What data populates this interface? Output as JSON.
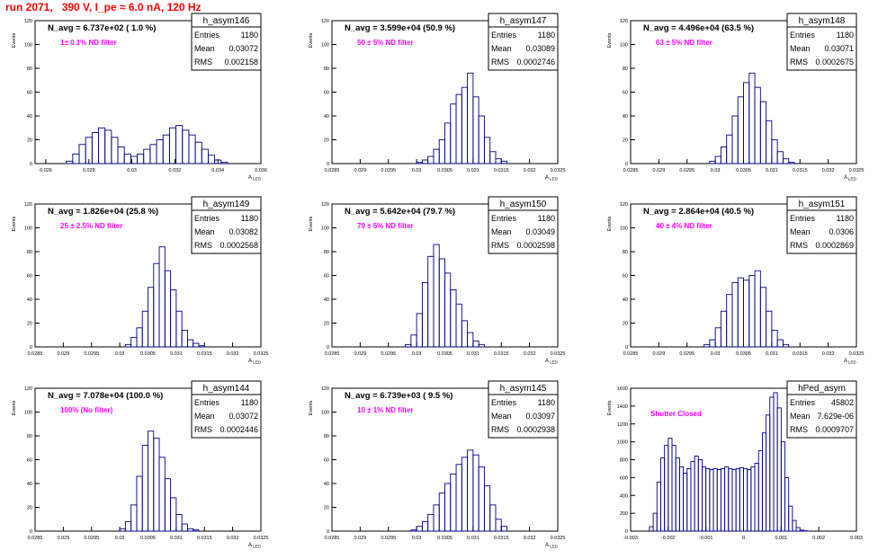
{
  "page_title": "run 2071,   390 V, I_pe ≈ 6.0 nA, 120 Hz",
  "colors": {
    "title": "#ff0000",
    "histogram": "#00008b",
    "filter_text": "#ff00ff",
    "frame": "#000000"
  },
  "chart_data": [
    {
      "type": "bar",
      "name": "h_asym146",
      "navg": "N_avg = 6.737e+02 ( 1.0 %)",
      "filter": "1± 0.1% ND filter",
      "stats": {
        "Entries": "1180",
        "Mean": "0.03072",
        "RMS": "0.002158"
      },
      "ylabel": "Events",
      "xlabel": "A_LED",
      "xlim": [
        0.0255,
        0.036
      ],
      "ylim": [
        0,
        120
      ],
      "xticks": [
        0.026,
        0.028,
        0.03,
        0.032,
        0.034,
        0.036
      ],
      "xticklabels": [
        "0.026",
        "0.028",
        "0.03",
        "0.032",
        "0.034",
        "0.036"
      ],
      "yticks": [
        0,
        20,
        40,
        60,
        80,
        100,
        120
      ],
      "yticklabels": [
        "0",
        "20",
        "40",
        "60",
        "80",
        "100",
        "120"
      ],
      "x": [
        0.0271,
        0.0274,
        0.0277,
        0.028,
        0.0283,
        0.0286,
        0.0289,
        0.0292,
        0.0295,
        0.0298,
        0.0301,
        0.0304,
        0.0307,
        0.031,
        0.0313,
        0.0316,
        0.0319,
        0.0322,
        0.0325,
        0.0328,
        0.0331,
        0.0334,
        0.0337,
        0.034,
        0.0343
      ],
      "values": [
        2,
        8,
        16,
        22,
        26,
        30,
        28,
        22,
        14,
        8,
        6,
        8,
        12,
        16,
        20,
        24,
        30,
        32,
        28,
        24,
        18,
        12,
        7,
        3,
        1
      ]
    },
    {
      "type": "bar",
      "name": "h_asym147",
      "navg": "N_avg = 3.599e+04 (50.9 %)",
      "filter": "50 ± 5% ND filter",
      "stats": {
        "Entries": "1180",
        "Mean": "0.03089",
        "RMS": "0.0002746"
      },
      "ylabel": "Events",
      "xlabel": "A_LED",
      "xlim": [
        0.0285,
        0.0325
      ],
      "ylim": [
        0,
        120
      ],
      "xticks": [
        0.0285,
        0.029,
        0.0295,
        0.03,
        0.0305,
        0.031,
        0.0315,
        0.032,
        0.0325
      ],
      "xticklabels": [
        "0.0285",
        "0.029",
        "0.0295",
        "0.03",
        "0.0305",
        "0.031",
        "0.0315",
        "0.032",
        "0.0325"
      ],
      "yticks": [
        0,
        20,
        40,
        60,
        80,
        100,
        120
      ],
      "yticklabels": [
        "0",
        "20",
        "40",
        "60",
        "80",
        "100",
        "120"
      ],
      "x": [
        0.03005,
        0.03015,
        0.03025,
        0.03035,
        0.03045,
        0.03055,
        0.03065,
        0.03075,
        0.03085,
        0.03095,
        0.03105,
        0.03115,
        0.03125,
        0.03135,
        0.03145,
        0.03155
      ],
      "values": [
        1,
        3,
        6,
        12,
        20,
        34,
        50,
        58,
        64,
        76,
        56,
        40,
        22,
        10,
        4,
        2
      ]
    },
    {
      "type": "bar",
      "name": "h_asym148",
      "navg": "N_avg = 4.496e+04 (63.5 %)",
      "filter": "63 ± 5% ND filter",
      "stats": {
        "Entries": "1180",
        "Mean": "0.03071",
        "RMS": "0.0002675"
      },
      "ylabel": "Events",
      "xlabel": "A_LED",
      "xlim": [
        0.0285,
        0.0325
      ],
      "ylim": [
        0,
        120
      ],
      "xticks": [
        0.0285,
        0.029,
        0.0295,
        0.03,
        0.0305,
        0.031,
        0.0315,
        0.032,
        0.0325
      ],
      "xticklabels": [
        "0.0285",
        "0.029",
        "0.0295",
        "0.03",
        "0.0305",
        "0.031",
        "0.0315",
        "0.032",
        "0.0325"
      ],
      "yticks": [
        0,
        20,
        40,
        60,
        80,
        100,
        120
      ],
      "yticklabels": [
        "0",
        "20",
        "40",
        "60",
        "80",
        "100",
        "120"
      ],
      "x": [
        0.02995,
        0.03005,
        0.03015,
        0.03025,
        0.03035,
        0.03045,
        0.03055,
        0.03065,
        0.03075,
        0.03085,
        0.03095,
        0.03105,
        0.03115,
        0.03125,
        0.03135
      ],
      "values": [
        2,
        6,
        14,
        24,
        40,
        56,
        68,
        76,
        64,
        52,
        36,
        20,
        10,
        4,
        1
      ]
    },
    {
      "type": "bar",
      "name": "h_asym149",
      "navg": "N_avg = 1.826e+04 (25.8 %)",
      "filter": "25 ± 2.5% ND filter",
      "stats": {
        "Entries": "1180",
        "Mean": "0.03082",
        "RMS": "0.0002568"
      },
      "ylabel": "Events",
      "xlabel": "A_LED",
      "xlim": [
        0.0285,
        0.0325
      ],
      "ylim": [
        0,
        120
      ],
      "xticks": [
        0.0285,
        0.029,
        0.0295,
        0.03,
        0.0305,
        0.031,
        0.0315,
        0.032,
        0.0325
      ],
      "xticklabels": [
        "0.0285",
        "0.029",
        "0.0295",
        "0.03",
        "0.0305",
        "0.031",
        "0.0315",
        "0.032",
        "0.0325"
      ],
      "yticks": [
        0,
        20,
        40,
        60,
        80,
        100,
        120
      ],
      "yticklabels": [
        "0",
        "20",
        "40",
        "60",
        "80",
        "100",
        "120"
      ],
      "x": [
        0.03015,
        0.03025,
        0.03035,
        0.03045,
        0.03055,
        0.03065,
        0.03075,
        0.03085,
        0.03095,
        0.03105,
        0.03115,
        0.03125,
        0.03135,
        0.03145
      ],
      "values": [
        2,
        8,
        16,
        30,
        50,
        70,
        84,
        64,
        48,
        30,
        14,
        6,
        3,
        1
      ]
    },
    {
      "type": "bar",
      "name": "h_asym150",
      "navg": "N_avg = 5.642e+04 (79.7 %)",
      "filter": "79 ± 5% ND filter",
      "stats": {
        "Entries": "1180",
        "Mean": "0.03049",
        "RMS": "0.0002598"
      },
      "ylabel": "Events",
      "xlabel": "A_LED",
      "xlim": [
        0.0285,
        0.0325
      ],
      "ylim": [
        0,
        120
      ],
      "xticks": [
        0.0285,
        0.029,
        0.0295,
        0.03,
        0.0305,
        0.031,
        0.0315,
        0.032,
        0.0325
      ],
      "xticklabels": [
        "0.0285",
        "0.029",
        "0.0295",
        "0.03",
        "0.0305",
        "0.031",
        "0.0315",
        "0.032",
        "0.0325"
      ],
      "yticks": [
        0,
        20,
        40,
        60,
        80,
        100,
        120
      ],
      "yticklabels": [
        "0",
        "20",
        "40",
        "60",
        "80",
        "100",
        "120"
      ],
      "x": [
        0.02985,
        0.02995,
        0.03005,
        0.03015,
        0.03025,
        0.03035,
        0.03045,
        0.03055,
        0.03065,
        0.03075,
        0.03085,
        0.03095,
        0.03105,
        0.03115
      ],
      "values": [
        2,
        10,
        28,
        54,
        76,
        86,
        74,
        62,
        48,
        36,
        22,
        12,
        5,
        2
      ]
    },
    {
      "type": "bar",
      "name": "h_asym151",
      "navg": "N_avg = 2.864e+04 (40.5 %)",
      "filter": "40 ± 4% ND filter",
      "stats": {
        "Entries": "1180",
        "Mean": "0.0306",
        "RMS": "0.0002869"
      },
      "ylabel": "Events",
      "xlabel": "A_LED",
      "xlim": [
        0.0285,
        0.0325
      ],
      "ylim": [
        0,
        120
      ],
      "xticks": [
        0.0285,
        0.029,
        0.0295,
        0.03,
        0.0305,
        0.031,
        0.0315,
        0.032,
        0.0325
      ],
      "xticklabels": [
        "0.0285",
        "0.029",
        "0.0295",
        "0.03",
        "0.0305",
        "0.031",
        "0.0315",
        "0.032",
        "0.0325"
      ],
      "yticks": [
        0,
        20,
        40,
        60,
        80,
        100,
        120
      ],
      "yticklabels": [
        "0",
        "20",
        "40",
        "60",
        "80",
        "100",
        "120"
      ],
      "x": [
        0.02985,
        0.02995,
        0.03005,
        0.03015,
        0.03025,
        0.03035,
        0.03045,
        0.03055,
        0.03065,
        0.03075,
        0.03085,
        0.03095,
        0.03105,
        0.03115,
        0.03125
      ],
      "values": [
        2,
        6,
        16,
        30,
        44,
        54,
        58,
        56,
        60,
        64,
        50,
        30,
        14,
        6,
        2
      ]
    },
    {
      "type": "bar",
      "name": "h_asym144",
      "navg": "N_avg = 7.078e+04 (100.0 %)",
      "filter": "100% (No filter)",
      "stats": {
        "Entries": "1180",
        "Mean": "0.03072",
        "RMS": "0.0002446"
      },
      "ylabel": "Events",
      "xlabel": "A_LED",
      "xlim": [
        0.0285,
        0.0325
      ],
      "ylim": [
        0,
        120
      ],
      "xticks": [
        0.0285,
        0.029,
        0.0295,
        0.03,
        0.0305,
        0.031,
        0.0315,
        0.032,
        0.0325
      ],
      "xticklabels": [
        "0.0285",
        "0.029",
        "0.0295",
        "0.03",
        "0.0305",
        "0.031",
        "0.0315",
        "0.032",
        "0.0325"
      ],
      "yticks": [
        0,
        20,
        40,
        60,
        80,
        100,
        120
      ],
      "yticklabels": [
        "0",
        "20",
        "40",
        "60",
        "80",
        "100",
        "120"
      ],
      "x": [
        0.03005,
        0.03015,
        0.03025,
        0.03035,
        0.03045,
        0.03055,
        0.03065,
        0.03075,
        0.03085,
        0.03095,
        0.03105,
        0.03115,
        0.03125,
        0.03135
      ],
      "values": [
        2,
        8,
        22,
        46,
        72,
        84,
        78,
        62,
        44,
        28,
        14,
        6,
        2,
        1
      ]
    },
    {
      "type": "bar",
      "name": "h_asym145",
      "navg": "N_avg = 6.739e+03 ( 9.5 %)",
      "filter": "10 ± 1% ND filter",
      "stats": {
        "Entries": "1180",
        "Mean": "0.03097",
        "RMS": "0.0002938"
      },
      "ylabel": "Events",
      "xlabel": "A_LED",
      "xlim": [
        0.0285,
        0.0325
      ],
      "ylim": [
        0,
        120
      ],
      "xticks": [
        0.0285,
        0.029,
        0.0295,
        0.03,
        0.0305,
        0.031,
        0.0315,
        0.032,
        0.0325
      ],
      "xticklabels": [
        "0.0285",
        "0.029",
        "0.0295",
        "0.03",
        "0.0305",
        "0.031",
        "0.0315",
        "0.032",
        "0.0325"
      ],
      "yticks": [
        0,
        20,
        40,
        60,
        80,
        100,
        120
      ],
      "yticklabels": [
        "0",
        "20",
        "40",
        "60",
        "80",
        "100",
        "120"
      ],
      "x": [
        0.02995,
        0.03005,
        0.03015,
        0.03025,
        0.03035,
        0.03045,
        0.03055,
        0.03065,
        0.03075,
        0.03085,
        0.03095,
        0.03105,
        0.03115,
        0.03125,
        0.03135,
        0.03145,
        0.03155
      ],
      "values": [
        1,
        4,
        8,
        14,
        22,
        32,
        40,
        48,
        56,
        62,
        68,
        64,
        54,
        38,
        22,
        10,
        4
      ]
    },
    {
      "type": "bar",
      "name": "hPed_asym",
      "navg": "",
      "filter": "Shutter Closed",
      "stats": {
        "Entries": "45802",
        "Mean": "7.629e-06",
        "RMS": "0.0009707"
      },
      "ylabel": "Events",
      "xlabel": "",
      "xlim": [
        -0.003,
        0.003
      ],
      "ylim": [
        0,
        1600
      ],
      "xticks": [
        -0.003,
        -0.002,
        -0.001,
        0,
        0.001,
        0.002,
        0.003
      ],
      "xticklabels": [
        "-0.003",
        "-0.002",
        "-0.001",
        "0",
        "0.001",
        "0.002",
        "0.003"
      ],
      "yticks": [
        0,
        200,
        400,
        600,
        800,
        1000,
        1200,
        1400,
        1600
      ],
      "yticklabels": [
        "0",
        "200",
        "400",
        "600",
        "800",
        "1000",
        "1200",
        "1400",
        "1600"
      ],
      "x": [
        -0.00245,
        -0.00235,
        -0.00225,
        -0.00215,
        -0.00205,
        -0.00195,
        -0.00185,
        -0.00175,
        -0.00165,
        -0.00155,
        -0.00145,
        -0.00135,
        -0.00125,
        -0.00115,
        -0.00105,
        -0.00095,
        -0.00085,
        -0.00075,
        -0.00065,
        -0.00055,
        -0.00045,
        -0.00035,
        -0.00025,
        -0.00015,
        -5e-05,
        5e-05,
        0.00015,
        0.00025,
        0.00035,
        0.00045,
        0.00055,
        0.00065,
        0.00075,
        0.00085,
        0.00095,
        0.00105,
        0.00115,
        0.00125,
        0.00135,
        0.00145,
        0.00155,
        0.00165,
        0.00175
      ],
      "values": [
        50,
        200,
        550,
        820,
        960,
        1040,
        960,
        820,
        720,
        650,
        700,
        780,
        840,
        800,
        720,
        700,
        690,
        700,
        690,
        700,
        720,
        700,
        690,
        700,
        710,
        700,
        690,
        720,
        760,
        900,
        1100,
        1300,
        1500,
        1550,
        1380,
        1000,
        600,
        280,
        120,
        40,
        12,
        4,
        1
      ]
    }
  ]
}
